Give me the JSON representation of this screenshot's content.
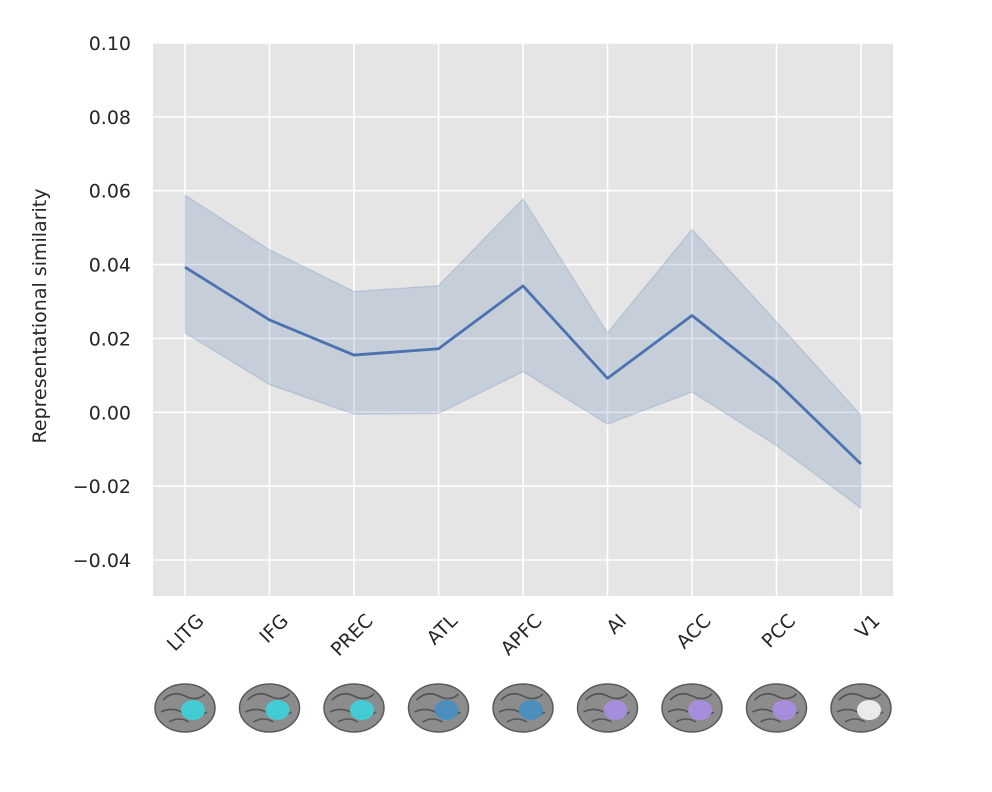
{
  "chart_data": {
    "type": "line",
    "title": "",
    "xlabel": "",
    "ylabel": "Representational similarity",
    "categories": [
      "LITG",
      "IFG",
      "PREC",
      "ATL",
      "APFC",
      "AI",
      "ACC",
      "PCC",
      "V1"
    ],
    "series": [
      {
        "values": [
          0.0393,
          0.025,
          0.0155,
          0.0172,
          0.0342,
          0.0092,
          0.0262,
          0.0082,
          -0.014
        ],
        "ci_lower": [
          0.0215,
          0.0075,
          -0.0005,
          -0.0003,
          0.011,
          -0.0032,
          0.0055,
          -0.009,
          -0.026
        ],
        "ci_upper": [
          0.0588,
          0.044,
          0.0327,
          0.0343,
          0.0578,
          0.0215,
          0.0495,
          0.0245,
          -0.0008
        ],
        "color": "#4c72b0"
      }
    ],
    "ylim": [
      -0.05,
      0.1
    ],
    "yticks": [
      "0.10",
      "0.08",
      "0.06",
      "0.04",
      "0.02",
      "0.00",
      "−0.02",
      "−0.04"
    ],
    "ytick_values": [
      0.1,
      0.08,
      0.06,
      0.04,
      0.02,
      0.0,
      -0.02,
      -0.04
    ],
    "grid": true,
    "background": "#e5e5e5",
    "grid_color": "#ffffff",
    "band_color": "#4c72b0",
    "brain_thumbnails": [
      {
        "region": "LITG",
        "highlight_color": "#3fd0d8"
      },
      {
        "region": "IFG",
        "highlight_color": "#3fd0d8"
      },
      {
        "region": "PREC",
        "highlight_color": "#3fd0d8"
      },
      {
        "region": "ATL",
        "highlight_color": "#4a8fbf"
      },
      {
        "region": "APFC",
        "highlight_color": "#4a8fbf"
      },
      {
        "region": "AI",
        "highlight_color": "#a88ee0"
      },
      {
        "region": "ACC",
        "highlight_color": "#a88ee0"
      },
      {
        "region": "PCC",
        "highlight_color": "#a88ee0"
      },
      {
        "region": "V1",
        "highlight_color": "#f0f0f0"
      }
    ]
  }
}
